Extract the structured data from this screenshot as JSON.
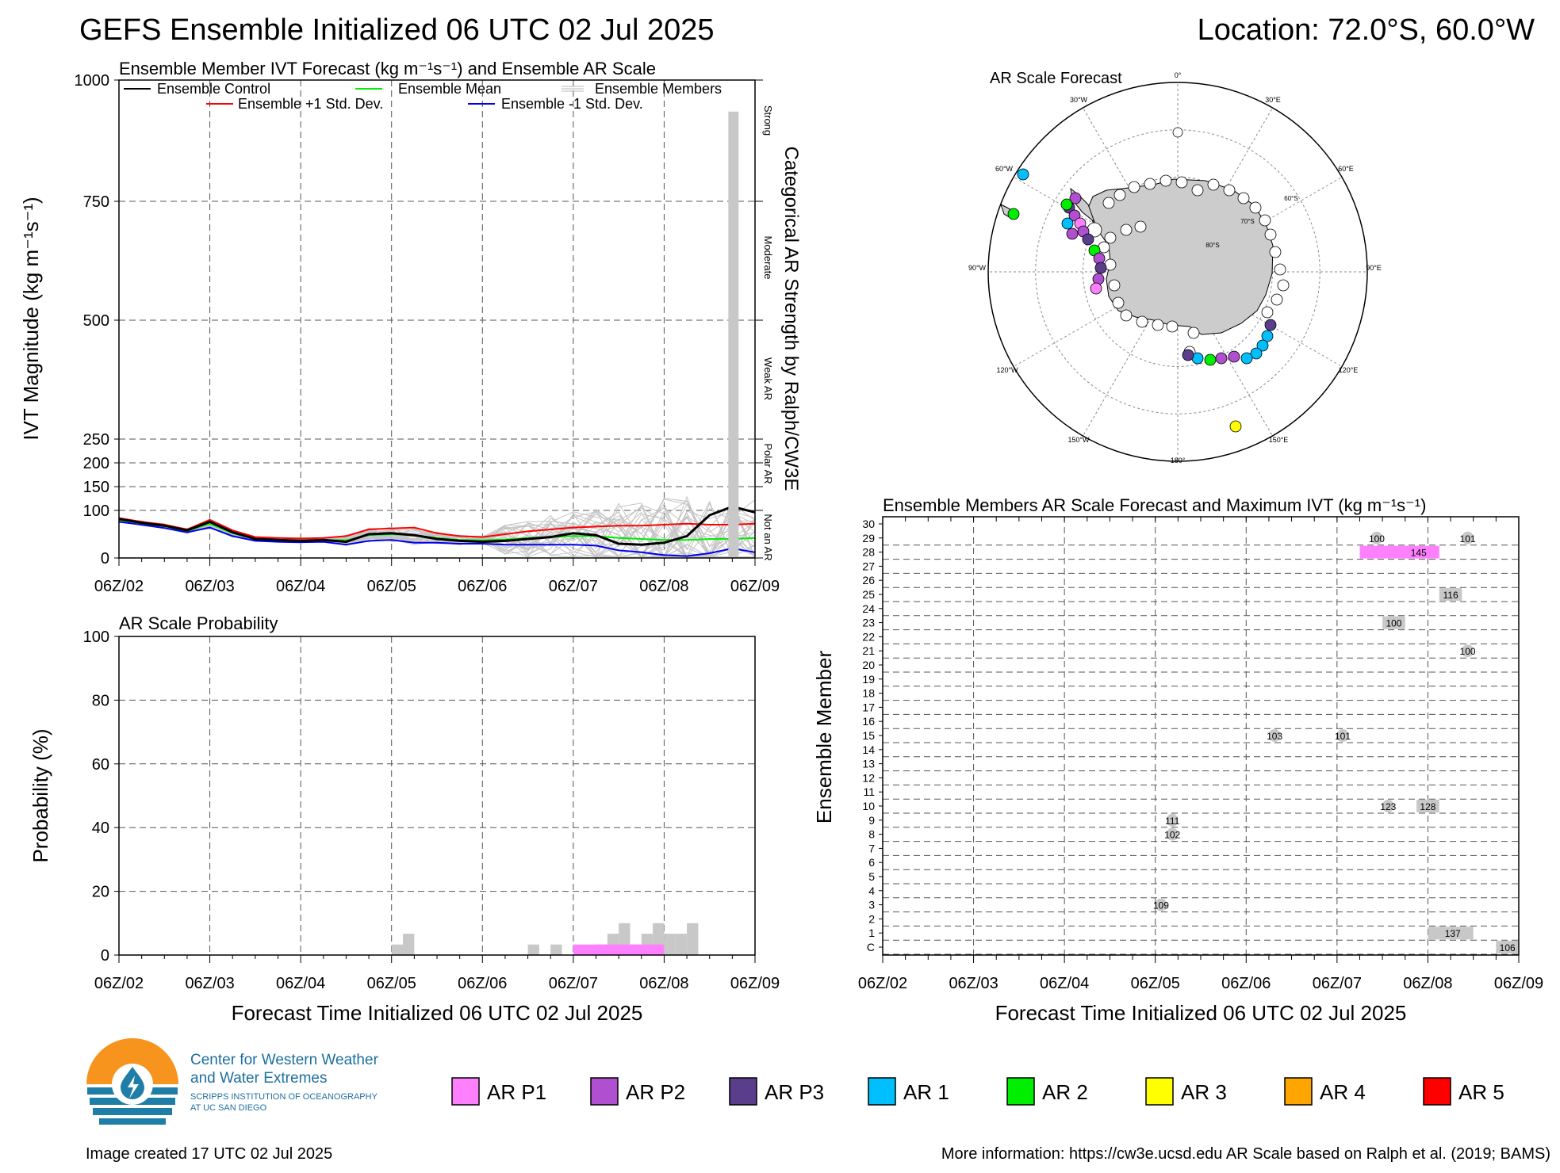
{
  "header": {
    "title": "GEFS Ensemble Initialized 06 UTC 02 Jul 2025",
    "location": "Location: 72.0°S, 60.0°W"
  },
  "ivt_panel": {
    "title": "Ensemble Member IVT Forecast (kg m⁻¹s⁻¹) and Ensemble AR Scale",
    "ylabel": "IVT Magnitude (kg m⁻¹s⁻¹)",
    "right_label": "Categorical AR Strength by Ralph/CW3E",
    "category_labels": [
      "Strong",
      "Moderate",
      "Weak AR",
      "Polar AR",
      "Not an AR"
    ],
    "legend": {
      "control": "Ensemble Control",
      "mean": "Ensemble Mean",
      "members": "Ensemble Members",
      "plus_std": "Ensemble +1 Std. Dev.",
      "minus_std": "Ensemble -1 Std. Dev."
    },
    "yticks": [
      "0",
      "100",
      "150",
      "200",
      "250",
      "500",
      "750",
      "1000"
    ],
    "xticks": [
      "06Z/02",
      "06Z/03",
      "06Z/04",
      "06Z/05",
      "06Z/06",
      "06Z/07",
      "06Z/08",
      "06Z/09"
    ]
  },
  "prob_panel": {
    "title": "AR Scale Probability",
    "ylabel": "Probability (%)",
    "xlabel": "Forecast Time Initialized 06 UTC 02 Jul 2025",
    "yticks": [
      "0",
      "20",
      "40",
      "60",
      "80",
      "100"
    ]
  },
  "map_panel": {
    "title": "AR Scale Forecast",
    "lon_labels": [
      "0°",
      "30°E",
      "60°E",
      "90°E",
      "120°E",
      "150°E",
      "180°",
      "150°W",
      "120°W",
      "90°W",
      "60°W",
      "30°W"
    ],
    "lat_labels": [
      "60°S",
      "70°S",
      "80°S"
    ]
  },
  "member_panel": {
    "title": "Ensemble Members AR Scale Forecast and Maximum IVT (kg m⁻¹s⁻¹)",
    "ylabel": "Ensemble Member",
    "xlabel": "Forecast Time Initialized 06 UTC 02 Jul 2025",
    "members": [
      "C",
      "1",
      "2",
      "3",
      "4",
      "5",
      "6",
      "7",
      "8",
      "9",
      "10",
      "11",
      "12",
      "13",
      "14",
      "15",
      "16",
      "17",
      "18",
      "19",
      "20",
      "21",
      "22",
      "23",
      "24",
      "25",
      "26",
      "27",
      "28",
      "29",
      "30"
    ]
  },
  "legend_ar": [
    {
      "label": "AR P1",
      "color": "#ff80ff"
    },
    {
      "label": "AR P2",
      "color": "#b050d0"
    },
    {
      "label": "AR P3",
      "color": "#5a3e8c"
    },
    {
      "label": "AR 1",
      "color": "#00bfff"
    },
    {
      "label": "AR 2",
      "color": "#00ee00"
    },
    {
      "label": "AR 3",
      "color": "#ffff00"
    },
    {
      "label": "AR 4",
      "color": "#ffa500"
    },
    {
      "label": "AR 5",
      "color": "#ff0000"
    }
  ],
  "logo": {
    "line1": "Center for Western Weather",
    "line2": "and Water Extremes",
    "line3": "SCRIPPS INSTITUTION OF OCEANOGRAPHY",
    "line4": "AT UC SAN DIEGO"
  },
  "footer": {
    "created": "Image created 17 UTC 02 Jul 2025",
    "info": "More information: https://cw3e.ucsd.edu AR Scale based on Ralph et al. (2019; BAMS)"
  },
  "chart_data": [
    {
      "type": "line",
      "title": "Ensemble Member IVT Forecast (kg m⁻¹s⁻¹) and Ensemble AR Scale",
      "x_unit": "forecast hours since 06Z/02",
      "xlim": [
        0,
        168
      ],
      "ylim": [
        0,
        1000
      ],
      "scale": "piecewise",
      "series": [
        {
          "name": "Ensemble Control",
          "color": "#000000",
          "x": [
            0,
            6,
            12,
            18,
            24,
            30,
            36,
            42,
            48,
            54,
            60,
            66,
            72,
            78,
            84,
            90,
            96,
            102,
            108,
            114,
            120,
            126,
            132,
            138,
            144,
            150,
            156,
            162,
            168
          ],
          "y": [
            82,
            74,
            68,
            58,
            76,
            54,
            40,
            38,
            36,
            38,
            34,
            50,
            52,
            48,
            40,
            36,
            34,
            36,
            40,
            44,
            52,
            48,
            30,
            28,
            32,
            46,
            90,
            108,
            96
          ]
        },
        {
          "name": "Ensemble Mean",
          "color": "#00ee00",
          "x": [
            0,
            6,
            12,
            18,
            24,
            30,
            36,
            42,
            48,
            54,
            60,
            66,
            72,
            78,
            84,
            90,
            96,
            102,
            108,
            114,
            120,
            126,
            132,
            138,
            144,
            150,
            156,
            162,
            168
          ],
          "y": [
            80,
            73,
            67,
            57,
            72,
            52,
            40,
            38,
            37,
            38,
            37,
            48,
            50,
            48,
            42,
            38,
            37,
            39,
            42,
            44,
            46,
            46,
            42,
            40,
            38,
            38,
            40,
            40,
            42
          ]
        },
        {
          "name": "Ensemble +1 Std. Dev.",
          "color": "#ff0000",
          "x": [
            0,
            6,
            12,
            18,
            24,
            30,
            36,
            42,
            48,
            54,
            60,
            66,
            72,
            78,
            84,
            90,
            96,
            102,
            108,
            114,
            120,
            126,
            132,
            138,
            144,
            150,
            156,
            162,
            168
          ],
          "y": [
            84,
            76,
            70,
            60,
            80,
            58,
            44,
            42,
            41,
            42,
            46,
            60,
            62,
            64,
            52,
            46,
            44,
            50,
            56,
            60,
            64,
            66,
            68,
            68,
            70,
            72,
            70,
            70,
            72
          ]
        },
        {
          "name": "Ensemble -1 Std. Dev.",
          "color": "#0000ee",
          "x": [
            0,
            6,
            12,
            18,
            24,
            30,
            36,
            42,
            48,
            54,
            60,
            66,
            72,
            78,
            84,
            90,
            96,
            102,
            108,
            114,
            120,
            126,
            132,
            138,
            144,
            150,
            156,
            162,
            168
          ],
          "y": [
            76,
            70,
            63,
            54,
            64,
            46,
            36,
            34,
            33,
            34,
            28,
            36,
            38,
            32,
            32,
            30,
            30,
            28,
            28,
            28,
            28,
            26,
            16,
            12,
            6,
            4,
            10,
            20,
            12
          ]
        }
      ],
      "ar_probability_bar": {
        "x": 162,
        "value": 935
      }
    },
    {
      "type": "bar",
      "title": "AR Scale Probability",
      "ylim": [
        0,
        100
      ],
      "bars": [
        {
          "start": 72,
          "end": 75,
          "value": 3.3,
          "color": "#c8c8c8"
        },
        {
          "start": 75,
          "end": 78,
          "value": 6.7,
          "color": "#c8c8c8"
        },
        {
          "start": 108,
          "end": 111,
          "value": 3.3,
          "color": "#c8c8c8"
        },
        {
          "start": 114,
          "end": 117,
          "value": 3.3,
          "color": "#c8c8c8"
        },
        {
          "start": 126,
          "end": 129,
          "value": 3.3,
          "color": "#ff80ff"
        },
        {
          "start": 129,
          "end": 132,
          "value": 6.7,
          "color": "#c8c8c8"
        },
        {
          "start": 132,
          "end": 135,
          "value": 10,
          "color": "#c8c8c8"
        },
        {
          "start": 135,
          "end": 138,
          "value": 3.3,
          "color": "#ff80ff"
        },
        {
          "start": 138,
          "end": 141,
          "value": 6.7,
          "color": "#c8c8c8"
        },
        {
          "start": 141,
          "end": 144,
          "value": 10,
          "color": "#c8c8c8"
        },
        {
          "start": 144,
          "end": 147,
          "value": 6.7,
          "color": "#c8c8c8"
        },
        {
          "start": 147,
          "end": 150,
          "value": 6.7,
          "color": "#c8c8c8"
        },
        {
          "start": 150,
          "end": 153,
          "value": 10,
          "color": "#c8c8c8"
        }
      ]
    },
    {
      "type": "table",
      "title": "Ensemble Members AR Scale Forecast and Maximum IVT (kg m⁻¹s⁻¹)",
      "events": [
        {
          "member": "29",
          "start": 129,
          "end": 132,
          "label": "100",
          "color": "#c8c8c8"
        },
        {
          "member": "29",
          "start": 153,
          "end": 156,
          "label": "101",
          "color": "#c8c8c8"
        },
        {
          "member": "28",
          "start": 126,
          "end": 147,
          "label": "145",
          "color": "#ff80ff"
        },
        {
          "member": "25",
          "start": 147,
          "end": 153,
          "label": "116",
          "color": "#c8c8c8"
        },
        {
          "member": "23",
          "start": 132,
          "end": 138,
          "label": "100",
          "color": "#c8c8c8"
        },
        {
          "member": "21",
          "start": 153,
          "end": 156,
          "label": "100",
          "color": "#c8c8c8"
        },
        {
          "member": "15",
          "start": 102,
          "end": 105,
          "label": "103",
          "color": "#c8c8c8"
        },
        {
          "member": "15",
          "start": 120,
          "end": 123,
          "label": "101",
          "color": "#c8c8c8"
        },
        {
          "member": "10",
          "start": 132,
          "end": 135,
          "label": "123",
          "color": "#c8c8c8"
        },
        {
          "member": "10",
          "start": 141,
          "end": 147,
          "label": "128",
          "color": "#c8c8c8"
        },
        {
          "member": "9",
          "start": 75,
          "end": 78,
          "label": "111",
          "color": "#c8c8c8"
        },
        {
          "member": "8",
          "start": 75,
          "end": 78,
          "label": "102",
          "color": "#c8c8c8"
        },
        {
          "member": "3",
          "start": 72,
          "end": 75,
          "label": "109",
          "color": "#c8c8c8"
        },
        {
          "member": "1",
          "start": 144,
          "end": 156,
          "label": "137",
          "color": "#c8c8c8"
        },
        {
          "member": "C",
          "start": 162,
          "end": 168,
          "label": "106",
          "color": "#c8c8c8"
        }
      ]
    }
  ]
}
